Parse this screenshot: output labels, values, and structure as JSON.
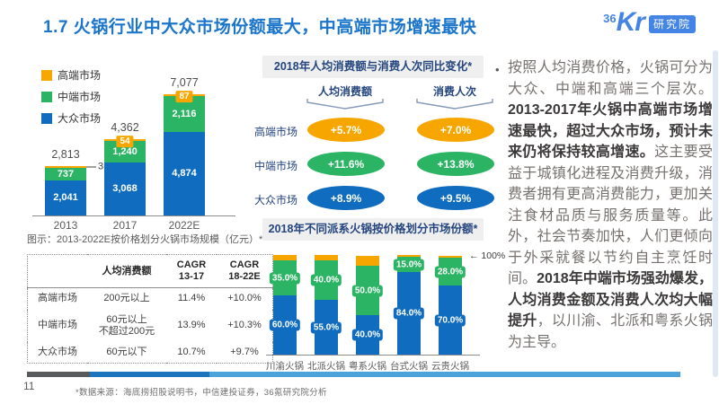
{
  "page": {
    "title": "1.7 火锅行业中大众市场份额最大，中高端市场增速最快",
    "page_number": "11",
    "footnote": "*数据来源：海底捞招股说明书，中信建投证券，36氪研究院分析"
  },
  "logo": {
    "three_six": "36",
    "kr": "Kr",
    "badge": "研究院"
  },
  "colors": {
    "high": "#F7A600",
    "mid": "#2BB463",
    "mass": "#0F6CBE",
    "title_blue": "#1A75CB",
    "logo_blue": "#4484E4",
    "navy": "#24457E",
    "panel_bg": "#EFEFEF",
    "bracket": "#8498B8",
    "text_gray": "#76716E",
    "text_dark": "#3B3838",
    "footer_gray": "#58595B",
    "footer_blue": "#1C75BC",
    "footer_lightblue": "#4BA3D9"
  },
  "legend": [
    {
      "label": "高端市场",
      "key": "high"
    },
    {
      "label": "中端市场",
      "key": "mid"
    },
    {
      "label": "大众市场",
      "key": "mass"
    }
  ],
  "chart_data": [
    {
      "id": "market_size_by_price_tier",
      "type": "bar",
      "stacked": true,
      "title": "图示：2013-2022E按价格划分火锅市场规模（亿元）*",
      "unit": "亿元",
      "categories": [
        "2013",
        "2017",
        "2022E"
      ],
      "totals": [
        "2,813",
        "4,362",
        "7,077"
      ],
      "series": [
        {
          "name": "大众市场",
          "key": "mass",
          "values": [
            2041,
            3068,
            4874
          ],
          "labels": [
            "2,041",
            "3,068",
            "4,874"
          ]
        },
        {
          "name": "中端市场",
          "key": "mid",
          "values": [
            737,
            1240,
            2116
          ],
          "labels": [
            "737",
            "1,240",
            "2,116"
          ]
        },
        {
          "name": "高端市场",
          "key": "high",
          "values": [
            35,
            54,
            87
          ],
          "labels": [
            "35",
            "54",
            "87"
          ],
          "label_style": [
            "callout",
            "chip",
            "chip"
          ]
        }
      ],
      "legend_position": "top-left",
      "grid": false
    },
    {
      "id": "school_share_by_price_tier_2018",
      "type": "bar",
      "stacked": true,
      "title": "2018年不同派系火锅按价格划分市场份额*",
      "ymax": 100,
      "annotation": "← 100%",
      "categories": [
        "川渝火锅",
        "北派火锅",
        "粤系火锅",
        "台式火锅",
        "云贵火锅"
      ],
      "series": [
        {
          "name": "大众市场",
          "key": "mass",
          "values": [
            60,
            55,
            40,
            84,
            70
          ],
          "labels": [
            "60.0%",
            "55.0%",
            "40.0%",
            "84.0%",
            "70.0%"
          ]
        },
        {
          "name": "中端市场",
          "key": "mid",
          "values": [
            35,
            40,
            50,
            15,
            28
          ],
          "labels": [
            "35.0%",
            "40.0%",
            "50.0%",
            "15.0%",
            "28.0%"
          ]
        },
        {
          "name": "高端市场",
          "key": "high",
          "values": [
            5,
            5,
            10,
            1,
            2
          ],
          "labels": [
            null,
            null,
            null,
            null,
            null
          ]
        }
      ],
      "grid": false
    }
  ],
  "uplift_panel": {
    "title": "2018年人均消费额与消费人次同比变化*",
    "columns": [
      "人均消费额",
      "消费人次"
    ],
    "rows": [
      {
        "label": "高端市场",
        "key": "high",
        "spend": "+5.7%",
        "visits": "+7.0%"
      },
      {
        "label": "中端市场",
        "key": "mid",
        "spend": "+11.6%",
        "visits": "+13.8%"
      },
      {
        "label": "大众市场",
        "key": "mass",
        "spend": "+8.9%",
        "visits": "+9.5%"
      }
    ]
  },
  "price_table": {
    "headers": [
      "",
      "人均消费额",
      "CAGR\n13-17",
      "CAGR\n18-22E"
    ],
    "rows": [
      [
        "高端市场",
        "200元以上",
        "11.4%",
        "+10.0%"
      ],
      [
        "中端市场",
        "60元以上\n不超过200元",
        "13.9%",
        "+10.3%"
      ],
      [
        "大众市场",
        "60元以下",
        "10.7%",
        "+9.7%"
      ]
    ]
  },
  "commentary": {
    "bullet": "•",
    "segments": [
      {
        "bold": false,
        "text": "按照人均消费价格，火锅可分为大众、中端和高端三个层次。"
      },
      {
        "bold": true,
        "text": "2013-2017年火锅中高端市场增速最快，超过大众市场，预计未来仍将保持较高增速。"
      },
      {
        "bold": false,
        "text": "这主要受益于城镇化进程及消费升级，消费者拥有更高消费能力，更加关注食材品质与服务质量等。此外，社会节奏加快，人们更倾向于外采就餐以节约自主烹饪时间。"
      },
      {
        "bold": true,
        "text": "2018年中端市场强劲爆发，人均消费金额及消费人次均大幅提升"
      },
      {
        "bold": false,
        "text": "，以川渝、北派和粤系火锅为主导。"
      }
    ]
  }
}
